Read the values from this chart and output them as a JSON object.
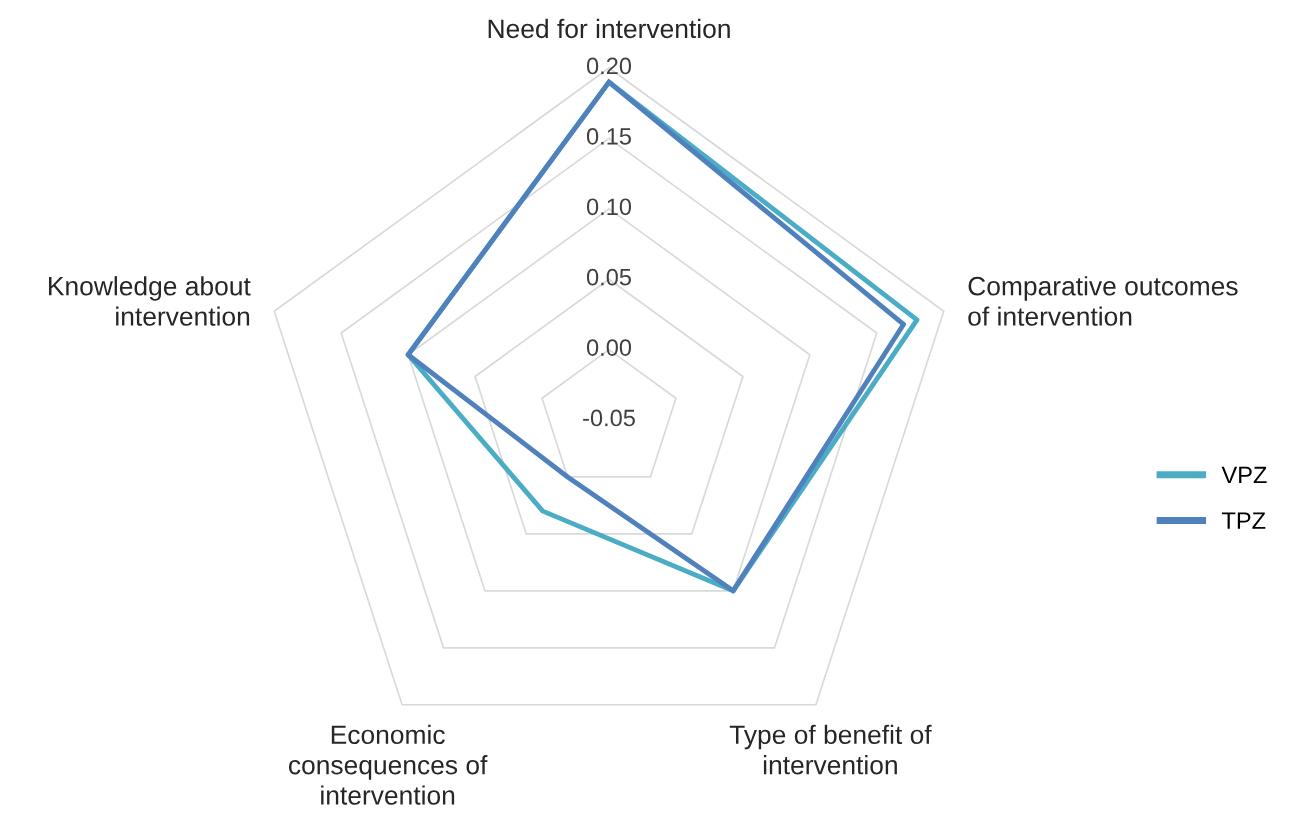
{
  "chart_data": {
    "type": "radar",
    "categories": [
      "Need for intervention",
      "Comparative outcomes\nof intervention",
      "Type of benefit of\nintervention",
      "Economic\nconsequences of\nintervention",
      "Knowledge about\nintervention"
    ],
    "series": [
      {
        "name": "VPZ",
        "color": "#4bacc6",
        "values": [
          0.19,
          0.18,
          0.1,
          0.03,
          0.1
        ]
      },
      {
        "name": "TPZ",
        "color": "#4f81bd",
        "values": [
          0.19,
          0.17,
          0.1,
          0.0,
          0.1
        ]
      }
    ],
    "ylim": [
      -0.05,
      0.2
    ],
    "yticks": [
      {
        "value": -0.05,
        "label": "-0.05"
      },
      {
        "value": 0.0,
        "label": "0.00"
      },
      {
        "value": 0.05,
        "label": "0.05"
      },
      {
        "value": 0.1,
        "label": "0.10"
      },
      {
        "value": 0.15,
        "label": "0.15"
      },
      {
        "value": 0.2,
        "label": "0.20"
      }
    ],
    "grid": true,
    "legend": "right"
  }
}
